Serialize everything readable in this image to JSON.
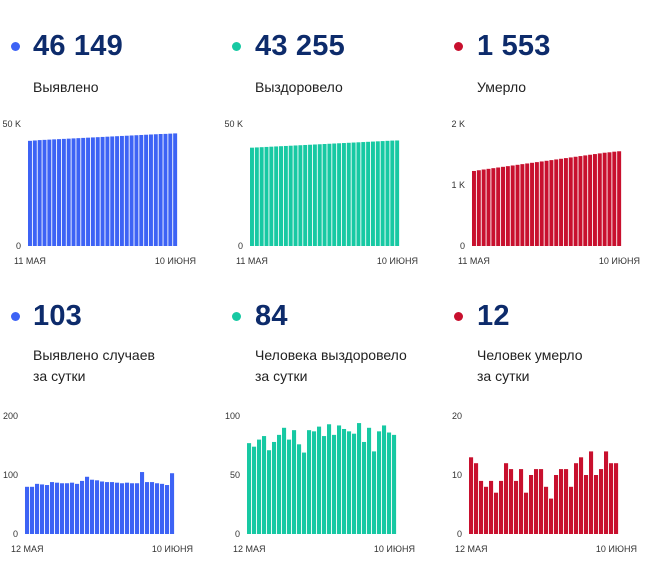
{
  "panels": [
    {
      "id": "cases-total",
      "color": "#3d63f5",
      "value": "46 149",
      "label": [
        "Выявлено"
      ],
      "chart_data": {
        "type": "bar",
        "x_first": "11 МАЯ",
        "x_last": "10 ИЮНЯ",
        "y_ticks": [
          "0",
          "50 K"
        ],
        "ylim": [
          0,
          50000
        ],
        "values": [
          43100,
          43250,
          43400,
          43500,
          43600,
          43700,
          43800,
          43900,
          44000,
          44100,
          44200,
          44300,
          44400,
          44500,
          44600,
          44700,
          44800,
          44900,
          45000,
          45100,
          45200,
          45300,
          45400,
          45500,
          45600,
          45700,
          45800,
          45900,
          45950,
          46050,
          46149
        ]
      }
    },
    {
      "id": "recovered-total",
      "color": "#17c9a3",
      "value": "43 255",
      "label": [
        "Выздоровело"
      ],
      "chart_data": {
        "type": "bar",
        "x_first": "11 МАЯ",
        "x_last": "10 ИЮНЯ",
        "y_ticks": [
          "0",
          "50 K"
        ],
        "ylim": [
          0,
          50000
        ],
        "values": [
          40300,
          40400,
          40500,
          40600,
          40700,
          40800,
          40900,
          41000,
          41100,
          41200,
          41300,
          41400,
          41500,
          41600,
          41700,
          41800,
          41900,
          42000,
          42100,
          42200,
          42300,
          42400,
          42500,
          42600,
          42700,
          42800,
          42900,
          43000,
          43100,
          43200,
          43255
        ]
      }
    },
    {
      "id": "deaths-total",
      "color": "#c8102e",
      "value": "1 553",
      "label": [
        "Умерло"
      ],
      "chart_data": {
        "type": "bar",
        "x_first": "11 МАЯ",
        "x_last": "10 ИЮНЯ",
        "y_ticks": [
          "0",
          "1 K",
          "2 K"
        ],
        "ylim": [
          0,
          2000
        ],
        "values": [
          1230,
          1242,
          1254,
          1265,
          1276,
          1287,
          1298,
          1309,
          1320,
          1331,
          1342,
          1353,
          1364,
          1375,
          1386,
          1397,
          1408,
          1419,
          1430,
          1441,
          1452,
          1463,
          1474,
          1485,
          1496,
          1507,
          1518,
          1529,
          1536,
          1546,
          1553
        ]
      }
    },
    {
      "id": "cases-daily",
      "color": "#3d63f5",
      "value": "103",
      "label": [
        "Выявлено случаев",
        "за сутки"
      ],
      "chart_data": {
        "type": "bar",
        "x_first": "12 МАЯ",
        "x_last": "10 ИЮНЯ",
        "y_ticks": [
          "0",
          "100",
          "200"
        ],
        "ylim": [
          0,
          200
        ],
        "values": [
          80,
          80,
          85,
          84,
          83,
          88,
          87,
          86,
          86,
          87,
          85,
          90,
          97,
          92,
          91,
          89,
          88,
          88,
          87,
          86,
          87,
          86,
          86,
          105,
          88,
          88,
          86,
          85,
          83,
          103
        ]
      }
    },
    {
      "id": "recovered-daily",
      "color": "#17c9a3",
      "value": "84",
      "label": [
        "Человека выздоровело",
        "за сутки"
      ],
      "chart_data": {
        "type": "bar",
        "x_first": "12 МАЯ",
        "x_last": "10 ИЮНЯ",
        "y_ticks": [
          "0",
          "50",
          "100"
        ],
        "ylim": [
          0,
          100
        ],
        "values": [
          77,
          74,
          80,
          83,
          71,
          78,
          84,
          90,
          80,
          88,
          76,
          69,
          88,
          87,
          91,
          83,
          93,
          84,
          92,
          89,
          87,
          85,
          94,
          78,
          90,
          70,
          87,
          92,
          86,
          84
        ]
      }
    },
    {
      "id": "deaths-daily",
      "color": "#c8102e",
      "value": "12",
      "label": [
        "Человек умерло",
        "за сутки"
      ],
      "chart_data": {
        "type": "bar",
        "x_first": "12 МАЯ",
        "x_last": "10 ИЮНЯ",
        "y_ticks": [
          "0",
          "10",
          "20"
        ],
        "ylim": [
          0,
          20
        ],
        "values": [
          13,
          12,
          9,
          8,
          9,
          7,
          9,
          12,
          11,
          9,
          11,
          7,
          10,
          11,
          11,
          8,
          6,
          10,
          11,
          11,
          8,
          12,
          13,
          10,
          14,
          10,
          11,
          14,
          12,
          12
        ]
      }
    }
  ]
}
